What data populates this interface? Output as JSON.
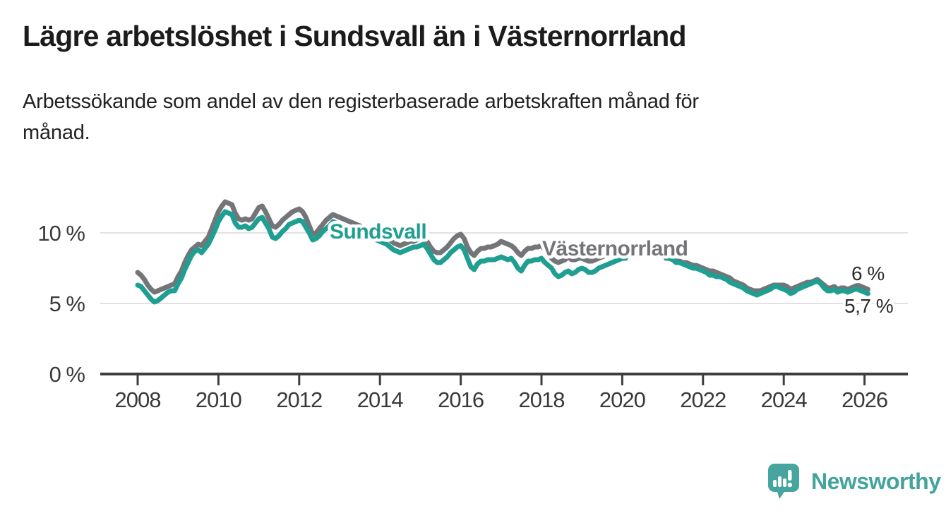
{
  "header": {
    "title": "Lägre arbetslöshet i Sundsvall än i Västernorrland",
    "subtitle": "Arbetssökande som andel av den registerbaserade arbetskraften månad för\nmånad."
  },
  "branding": {
    "logo_text": "Newsworthy",
    "logo_color": "#47a59f"
  },
  "chart_data": {
    "type": "line",
    "title": "Lägre arbetslöshet i Sundsvall än i Västernorrland",
    "subtitle": "Arbetssökande som andel av den registerbaserade arbetskraften månad för månad.",
    "unit": "%",
    "x_start_year": 2008.0,
    "x_step_years": 0.08333,
    "x_note": "monthly values Jan 2008 - Feb 2026, null = no data (gap Mar 2020 - Jan 2021)",
    "xlim": [
      2007.1,
      2027.1
    ],
    "ylim": [
      0,
      13
    ],
    "grid": "horizontal",
    "xticks": [
      {
        "value": 2008,
        "label": "2008"
      },
      {
        "value": 2010,
        "label": "2010"
      },
      {
        "value": 2012,
        "label": "2012"
      },
      {
        "value": 2014,
        "label": "2014"
      },
      {
        "value": 2016,
        "label": "2016"
      },
      {
        "value": 2018,
        "label": "2018"
      },
      {
        "value": 2020,
        "label": "2020"
      },
      {
        "value": 2022,
        "label": "2022"
      },
      {
        "value": 2024,
        "label": "2024"
      },
      {
        "value": 2026,
        "label": "2026"
      }
    ],
    "yticks": [
      {
        "value": 10,
        "label": "10 %"
      },
      {
        "value": 5,
        "label": "5 %"
      },
      {
        "value": 0,
        "label": "0 %"
      }
    ],
    "series": [
      {
        "name": "Sundsvall",
        "color": "#1f9e92",
        "end_label": "5,7 %",
        "last_value": 5.7,
        "values": [
          6.3,
          6.2,
          5.9,
          5.6,
          5.3,
          5.1,
          5.2,
          5.4,
          5.6,
          5.8,
          5.9,
          5.9,
          6.4,
          6.8,
          7.4,
          7.9,
          8.4,
          8.7,
          8.8,
          8.6,
          8.9,
          9.2,
          9.7,
          10.2,
          10.8,
          11.2,
          11.5,
          11.4,
          11.3,
          10.7,
          10.4,
          10.4,
          10.5,
          10.3,
          10.4,
          10.7,
          11.0,
          11.1,
          10.7,
          10.3,
          9.7,
          9.6,
          9.8,
          10.1,
          10.3,
          10.6,
          10.7,
          10.8,
          10.9,
          10.8,
          10.4,
          10.0,
          9.5,
          9.6,
          9.8,
          10.1,
          10.3,
          10.5,
          10.8,
          10.7,
          10.6,
          10.5,
          10.4,
          10.3,
          10.2,
          10.1,
          10.0,
          9.9,
          9.8,
          9.7,
          9.6,
          9.5,
          9.4,
          9.3,
          9.2,
          9.0,
          8.8,
          8.7,
          8.6,
          8.7,
          8.8,
          8.9,
          9.0,
          9.0,
          9.1,
          9.2,
          8.9,
          8.5,
          8.1,
          7.9,
          7.9,
          8.1,
          8.3,
          8.6,
          8.8,
          9.0,
          9.1,
          8.8,
          8.2,
          7.6,
          7.4,
          7.8,
          8.0,
          8.0,
          8.1,
          8.1,
          8.1,
          8.2,
          8.3,
          8.2,
          8.1,
          8.2,
          7.9,
          7.5,
          7.3,
          7.7,
          8.0,
          8.0,
          8.1,
          8.1,
          8.2,
          7.9,
          7.7,
          7.5,
          7.1,
          6.9,
          7.0,
          7.2,
          7.3,
          7.1,
          7.2,
          7.4,
          7.5,
          7.4,
          7.2,
          7.2,
          7.3,
          7.5,
          7.6,
          7.7,
          7.8,
          7.9,
          8.0,
          8.1,
          8.2,
          8.2,
          null,
          null,
          null,
          null,
          null,
          null,
          null,
          null,
          null,
          null,
          null,
          8.3,
          8.2,
          8.1,
          7.9,
          7.9,
          7.8,
          7.7,
          7.6,
          7.5,
          7.5,
          7.4,
          7.3,
          7.2,
          7.0,
          7.0,
          6.9,
          6.9,
          6.8,
          6.7,
          6.5,
          6.4,
          6.3,
          6.2,
          6.1,
          5.9,
          5.8,
          5.7,
          5.6,
          5.7,
          5.8,
          5.9,
          6.0,
          6.2,
          6.2,
          6.1,
          6.0,
          5.9,
          5.7,
          5.8,
          6.0,
          6.1,
          6.2,
          6.3,
          6.4,
          6.5,
          6.6,
          6.4,
          6.1,
          5.9,
          5.9,
          6.0,
          5.8,
          5.9,
          5.9,
          5.8,
          5.9,
          6.0,
          6.0,
          5.9,
          5.8,
          5.7
        ]
      },
      {
        "name": "Västernorrland",
        "color": "#747578",
        "end_label": "6 %",
        "last_value": 6.0,
        "values": [
          7.2,
          7.0,
          6.7,
          6.3,
          6.0,
          5.8,
          5.9,
          6.0,
          6.1,
          6.2,
          6.3,
          6.4,
          6.9,
          7.3,
          7.9,
          8.4,
          8.8,
          9.0,
          9.2,
          9.1,
          9.4,
          9.7,
          10.3,
          10.9,
          11.5,
          11.9,
          12.2,
          12.1,
          12.0,
          11.4,
          11.0,
          10.9,
          11.0,
          10.9,
          11.0,
          11.4,
          11.8,
          11.9,
          11.5,
          11.0,
          10.5,
          10.4,
          10.6,
          10.9,
          11.1,
          11.3,
          11.5,
          11.6,
          11.7,
          11.5,
          11.1,
          10.5,
          9.9,
          10.0,
          10.3,
          10.6,
          10.9,
          11.1,
          11.3,
          11.2,
          11.1,
          11.0,
          10.9,
          10.8,
          10.7,
          10.6,
          10.5,
          10.4,
          10.3,
          10.2,
          10.1,
          10.0,
          9.9,
          9.8,
          9.7,
          9.5,
          9.3,
          9.2,
          9.1,
          9.2,
          9.3,
          9.4,
          9.4,
          9.5,
          9.6,
          9.7,
          9.4,
          9.0,
          8.7,
          8.6,
          8.6,
          8.8,
          9.0,
          9.3,
          9.6,
          9.8,
          9.9,
          9.6,
          9.0,
          8.6,
          8.4,
          8.7,
          8.9,
          8.9,
          9.0,
          9.0,
          9.1,
          9.2,
          9.4,
          9.3,
          9.2,
          9.1,
          8.9,
          8.6,
          8.4,
          8.7,
          8.9,
          8.9,
          9.0,
          9.0,
          9.1,
          8.8,
          8.5,
          8.2,
          8.0,
          7.9,
          8.0,
          8.1,
          8.3,
          8.1,
          8.1,
          8.2,
          8.2,
          8.1,
          8.0,
          8.0,
          8.1,
          8.2,
          8.3,
          8.4,
          8.5,
          8.6,
          8.7,
          8.8,
          8.8,
          8.8,
          null,
          null,
          null,
          null,
          null,
          null,
          null,
          null,
          null,
          null,
          null,
          8.2,
          8.2,
          8.1,
          8.0,
          8.0,
          7.9,
          7.9,
          7.8,
          7.7,
          7.7,
          7.6,
          7.5,
          7.4,
          7.3,
          7.3,
          7.2,
          7.1,
          7.0,
          6.9,
          6.8,
          6.6,
          6.5,
          6.4,
          6.3,
          6.1,
          6.0,
          5.9,
          5.9,
          5.9,
          6.0,
          6.1,
          6.2,
          6.3,
          6.3,
          6.3,
          6.3,
          6.2,
          6.0,
          6.1,
          6.2,
          6.3,
          6.4,
          6.5,
          6.5,
          6.6,
          6.7,
          6.5,
          6.3,
          6.1,
          6.1,
          6.2,
          6.0,
          6.1,
          6.1,
          6.0,
          6.1,
          6.2,
          6.3,
          6.2,
          6.1,
          6.0
        ]
      }
    ]
  }
}
